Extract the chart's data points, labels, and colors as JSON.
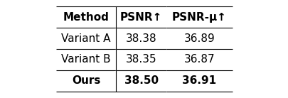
{
  "col_headers": [
    "Method",
    "PSNR↑",
    "PSNR-μ↑"
  ],
  "rows": [
    {
      "method": "Variant A",
      "psnr": "38.38",
      "psnr_mu": "36.89",
      "bold": false
    },
    {
      "method": "Variant B",
      "psnr": "38.35",
      "psnr_mu": "36.87",
      "bold": false
    },
    {
      "method": "Ours",
      "psnr": "38.50",
      "psnr_mu": "36.91",
      "bold": true
    }
  ],
  "bg_color": "white",
  "figsize": [
    4.06,
    1.38
  ],
  "dpi": 100,
  "fontsize": 11,
  "header_fontsize": 11
}
